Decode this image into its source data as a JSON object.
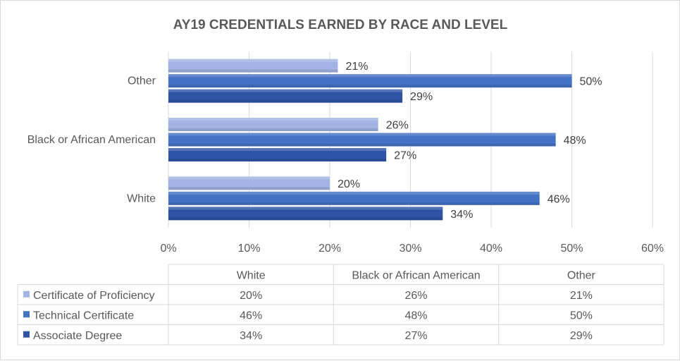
{
  "chart_data": {
    "type": "bar",
    "orientation": "horizontal",
    "title": "AY19 CREDENTIALS EARNED BY RACE AND LEVEL",
    "categories": [
      "White",
      "Black or African American",
      "Other"
    ],
    "series": [
      {
        "name": "Certificate of Proficiency",
        "values": [
          20,
          26,
          21
        ],
        "labels": [
          "20%",
          "26%",
          "21%"
        ],
        "color": "#a3b4e4"
      },
      {
        "name": "Technical Certificate",
        "values": [
          46,
          48,
          50
        ],
        "labels": [
          "46%",
          "48%",
          "50%"
        ],
        "color": "#4472c4"
      },
      {
        "name": "Associate Degree",
        "values": [
          34,
          27,
          29
        ],
        "labels": [
          "34%",
          "27%",
          "29%"
        ],
        "color": "#2f54a6"
      }
    ],
    "x_ticks": [
      "0%",
      "10%",
      "20%",
      "30%",
      "40%",
      "50%",
      "60%"
    ],
    "xlim": [
      0,
      60
    ],
    "grid": true,
    "legend": "data-table-below"
  }
}
